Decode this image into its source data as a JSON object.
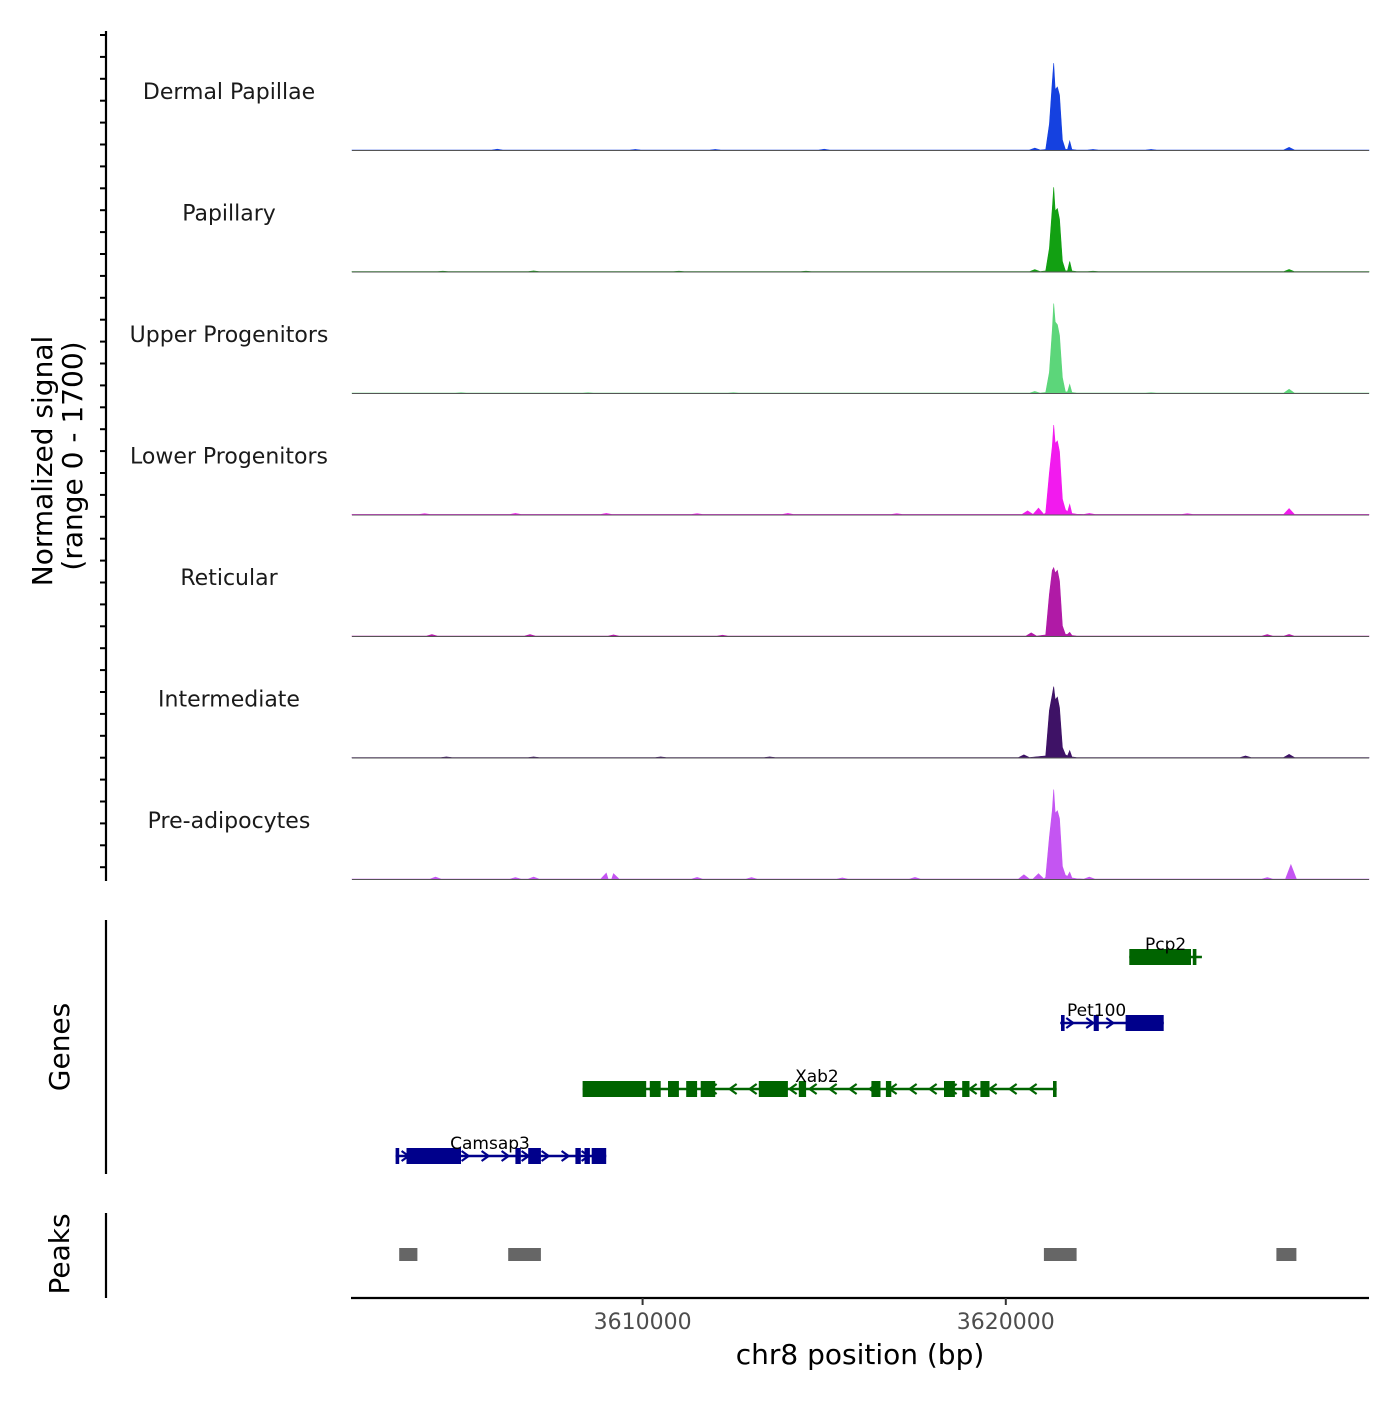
{
  "chart_data": {
    "type": "area",
    "title": "",
    "chromosome": "chr8",
    "xlabel": "chr8 position (bp)",
    "ylabel": "Normalized signal",
    "ylabel_range": "(range 0 - 1700)",
    "xlim": [
      3602000,
      3630000
    ],
    "ylim": [
      0,
      1700
    ],
    "x_ticks": [
      3610000,
      3620000
    ],
    "x_tick_labels": [
      "3610000",
      "3620000"
    ],
    "genes_panel_label": "Genes",
    "peaks_panel_label": "Peaks",
    "tracks": [
      {
        "name": "Dermal Papillae",
        "color": "#1541E0",
        "baseline": 10,
        "main_peak": [
          [
            3621100,
            20
          ],
          [
            3621200,
            500
          ],
          [
            3621280,
            1300
          ],
          [
            3621320,
            1650
          ],
          [
            3621360,
            1150
          ],
          [
            3621420,
            1200
          ],
          [
            3621480,
            1050
          ],
          [
            3621560,
            200
          ],
          [
            3621640,
            20
          ],
          [
            3621700,
            20
          ],
          [
            3621760,
            180
          ],
          [
            3621820,
            20
          ],
          [
            3621950,
            10
          ]
        ],
        "bumps": [
          [
            3606000,
            25
          ],
          [
            3609800,
            20
          ],
          [
            3612000,
            20
          ],
          [
            3615000,
            25
          ],
          [
            3620800,
            45
          ],
          [
            3622400,
            20
          ],
          [
            3624000,
            20
          ],
          [
            3627800,
            60
          ]
        ]
      },
      {
        "name": "Papillary",
        "color": "#12A012",
        "baseline": 8,
        "main_peak": [
          [
            3621100,
            20
          ],
          [
            3621200,
            450
          ],
          [
            3621280,
            1200
          ],
          [
            3621320,
            1600
          ],
          [
            3621360,
            1150
          ],
          [
            3621420,
            1200
          ],
          [
            3621480,
            1000
          ],
          [
            3621560,
            200
          ],
          [
            3621640,
            20
          ],
          [
            3621700,
            20
          ],
          [
            3621760,
            200
          ],
          [
            3621820,
            20
          ],
          [
            3621950,
            10
          ]
        ],
        "bumps": [
          [
            3604500,
            15
          ],
          [
            3607000,
            20
          ],
          [
            3611000,
            15
          ],
          [
            3614500,
            15
          ],
          [
            3620800,
            45
          ],
          [
            3622400,
            15
          ],
          [
            3627800,
            50
          ]
        ]
      },
      {
        "name": "Upper Progenitors",
        "color": "#5CD67A",
        "baseline": 8,
        "main_peak": [
          [
            3621100,
            20
          ],
          [
            3621200,
            400
          ],
          [
            3621280,
            1200
          ],
          [
            3621320,
            1700
          ],
          [
            3621360,
            1350
          ],
          [
            3621420,
            1300
          ],
          [
            3621480,
            1100
          ],
          [
            3621560,
            300
          ],
          [
            3621640,
            30
          ],
          [
            3621700,
            30
          ],
          [
            3621760,
            170
          ],
          [
            3621820,
            20
          ],
          [
            3621950,
            10
          ]
        ],
        "bumps": [
          [
            3605000,
            15
          ],
          [
            3608500,
            15
          ],
          [
            3612500,
            15
          ],
          [
            3620800,
            40
          ],
          [
            3624000,
            15
          ],
          [
            3627800,
            80
          ]
        ]
      },
      {
        "name": "Lower Progenitors",
        "color": "#F21AEE",
        "baseline": 12,
        "main_peak": [
          [
            3621100,
            40
          ],
          [
            3621200,
            800
          ],
          [
            3621280,
            1300
          ],
          [
            3621320,
            1700
          ],
          [
            3621360,
            1350
          ],
          [
            3621420,
            1400
          ],
          [
            3621480,
            1200
          ],
          [
            3621560,
            300
          ],
          [
            3621640,
            100
          ],
          [
            3621700,
            60
          ],
          [
            3621760,
            200
          ],
          [
            3621820,
            30
          ],
          [
            3621950,
            15
          ]
        ],
        "bumps": [
          [
            3604000,
            25
          ],
          [
            3606500,
            30
          ],
          [
            3609000,
            30
          ],
          [
            3611500,
            25
          ],
          [
            3614000,
            30
          ],
          [
            3617000,
            25
          ],
          [
            3620600,
            80
          ],
          [
            3620900,
            130
          ],
          [
            3622300,
            30
          ],
          [
            3625000,
            25
          ],
          [
            3627800,
            120
          ]
        ]
      },
      {
        "name": "Reticular",
        "color": "#B01AA6",
        "baseline": 8,
        "main_peak": [
          [
            3621100,
            30
          ],
          [
            3621200,
            800
          ],
          [
            3621280,
            1250
          ],
          [
            3621320,
            1300
          ],
          [
            3621360,
            1200
          ],
          [
            3621420,
            1250
          ],
          [
            3621480,
            1050
          ],
          [
            3621560,
            200
          ],
          [
            3621640,
            40
          ],
          [
            3621700,
            40
          ],
          [
            3621760,
            80
          ],
          [
            3621820,
            20
          ],
          [
            3621950,
            10
          ]
        ],
        "bumps": [
          [
            3604200,
            35
          ],
          [
            3606900,
            35
          ],
          [
            3609200,
            30
          ],
          [
            3612200,
            25
          ],
          [
            3620700,
            70
          ],
          [
            3627200,
            35
          ],
          [
            3627800,
            40
          ]
        ]
      },
      {
        "name": "Intermediate",
        "color": "#3E1266",
        "baseline": 10,
        "main_peak": [
          [
            3621100,
            40
          ],
          [
            3621200,
            900
          ],
          [
            3621280,
            1200
          ],
          [
            3621320,
            1350
          ],
          [
            3621360,
            1100
          ],
          [
            3621420,
            1150
          ],
          [
            3621480,
            950
          ],
          [
            3621560,
            200
          ],
          [
            3621640,
            60
          ],
          [
            3621700,
            40
          ],
          [
            3621760,
            140
          ],
          [
            3621820,
            20
          ],
          [
            3621950,
            10
          ]
        ],
        "bumps": [
          [
            3604600,
            20
          ],
          [
            3607000,
            20
          ],
          [
            3610500,
            20
          ],
          [
            3613500,
            20
          ],
          [
            3620500,
            60
          ],
          [
            3626600,
            40
          ],
          [
            3627800,
            70
          ]
        ]
      },
      {
        "name": "Pre-adipocytes",
        "color": "#C455F2",
        "baseline": 10,
        "main_peak": [
          [
            3621100,
            40
          ],
          [
            3621200,
            800
          ],
          [
            3621280,
            1300
          ],
          [
            3621320,
            1700
          ],
          [
            3621360,
            1250
          ],
          [
            3621420,
            1300
          ],
          [
            3621480,
            1150
          ],
          [
            3621560,
            250
          ],
          [
            3621640,
            80
          ],
          [
            3621700,
            60
          ],
          [
            3621760,
            140
          ],
          [
            3621820,
            30
          ],
          [
            3621950,
            15
          ]
        ],
        "bumps": [
          [
            3604300,
            45
          ],
          [
            3606500,
            35
          ],
          [
            3607000,
            45
          ],
          [
            3609000,
            120
          ],
          [
            3609200,
            110
          ],
          [
            3611500,
            40
          ],
          [
            3613000,
            35
          ],
          [
            3615500,
            30
          ],
          [
            3617500,
            40
          ],
          [
            3620500,
            90
          ],
          [
            3620900,
            110
          ],
          [
            3622300,
            45
          ],
          [
            3627200,
            35
          ],
          [
            3627850,
            280
          ]
        ]
      }
    ],
    "genes": [
      {
        "name": "Pcp2",
        "strand": "-",
        "color": "#006400",
        "row": 0,
        "start": 3623400,
        "end": 3625400,
        "exons": [
          [
            3623400,
            3625100
          ],
          [
            3625150,
            3625250
          ]
        ],
        "label_pos": 3624400
      },
      {
        "name": "Pet100",
        "strand": "+",
        "color": "#00008B",
        "row": 1,
        "start": 3621500,
        "end": 3624350,
        "exons": [
          [
            3621520,
            3621620
          ],
          [
            3622420,
            3622560
          ],
          [
            3623300,
            3624350
          ]
        ],
        "label_pos": 3622500
      },
      {
        "name": "Xab2",
        "strand": "-",
        "color": "#006400",
        "row": 2,
        "start": 3608350,
        "end": 3621400,
        "exons": [
          [
            3608350,
            3610100
          ],
          [
            3610200,
            3610500
          ],
          [
            3610700,
            3611000
          ],
          [
            3611200,
            3611500
          ],
          [
            3611600,
            3612000
          ],
          [
            3613200,
            3614000
          ],
          [
            3614300,
            3614500
          ],
          [
            3616300,
            3616550
          ],
          [
            3616700,
            3616850
          ],
          [
            3618300,
            3618600
          ],
          [
            3618800,
            3619000
          ],
          [
            3619300,
            3619550
          ],
          [
            3621300,
            3621400
          ]
        ],
        "label_pos": 3614800
      },
      {
        "name": "Camsap3",
        "strand": "+",
        "color": "#00008B",
        "row": 3,
        "start": 3603200,
        "end": 3609000,
        "exons": [
          [
            3603200,
            3603300
          ],
          [
            3603500,
            3605000
          ],
          [
            3606500,
            3606650
          ],
          [
            3606850,
            3607200
          ],
          [
            3608150,
            3608300
          ],
          [
            3608400,
            3608550
          ],
          [
            3608600,
            3609000
          ]
        ],
        "label_pos": 3605800
      }
    ],
    "peaks": [
      [
        3603300,
        3603800
      ],
      [
        3606300,
        3607200
      ],
      [
        3621050,
        3621950
      ],
      [
        3627450,
        3628000
      ]
    ]
  }
}
